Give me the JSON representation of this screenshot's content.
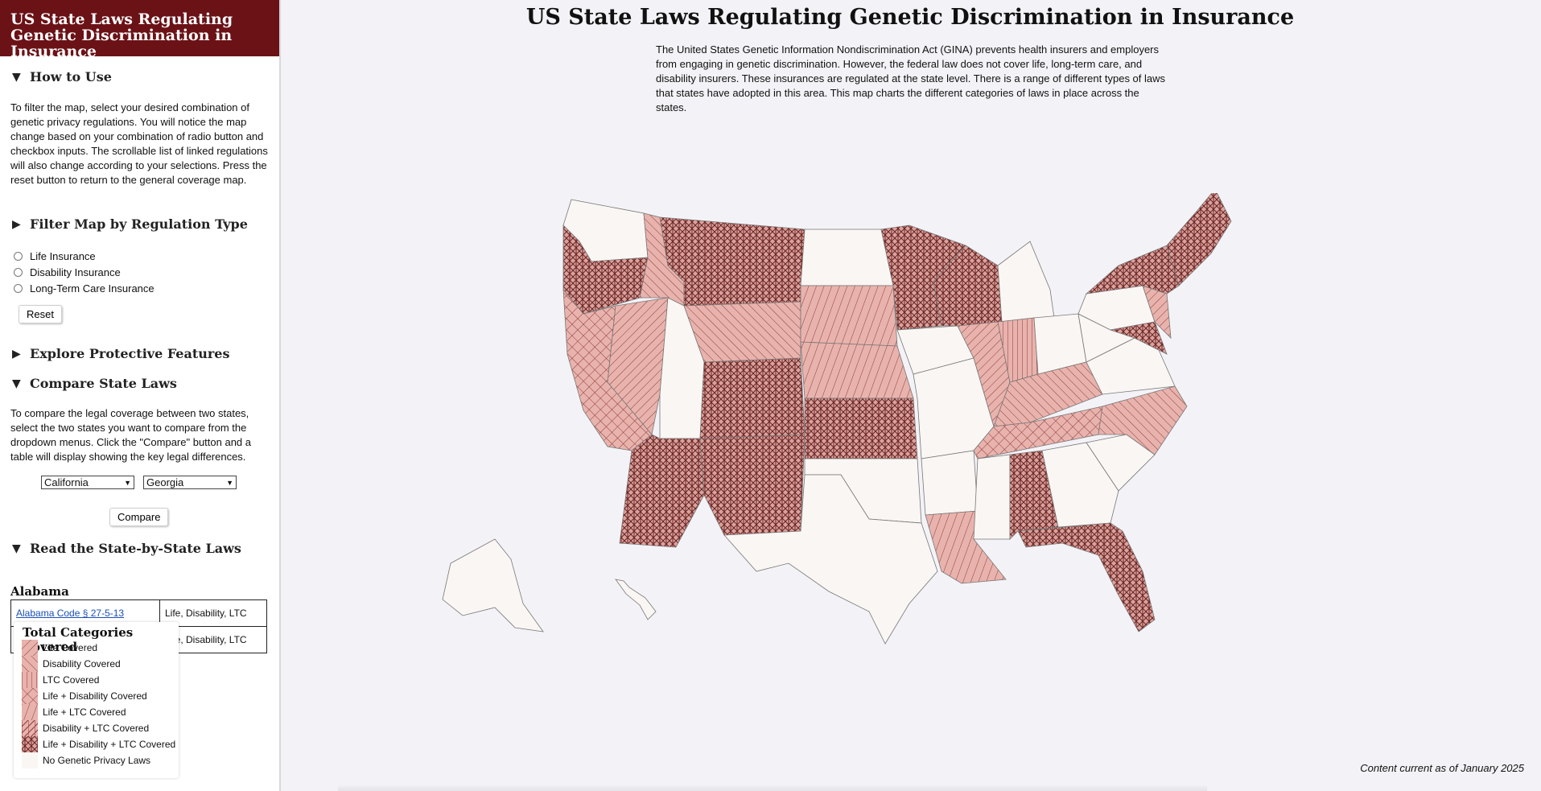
{
  "sidebar": {
    "title": "US State Laws Regulating Genetic Discrimination in Insurance",
    "how_to_use": {
      "heading": "How to Use",
      "text": "To filter the map, select your desired combination of genetic privacy regulations. You will notice the map change based on your combination of radio button and checkbox inputs. The scrollable list of linked regulations will also change according to your selections. Press the reset button to return to the general coverage map."
    },
    "filter": {
      "heading": "Filter Map by Regulation Type",
      "options": [
        "Life Insurance",
        "Disability Insurance",
        "Long-Term Care Insurance"
      ],
      "reset_label": "Reset"
    },
    "protective": {
      "heading": "Explore Protective Features"
    },
    "compare": {
      "heading": "Compare State Laws",
      "text": "To compare the legal coverage between two states, select the two states you want to compare from the dropdown menus. Click the \"Compare\" button and a table will display showing the key legal differences.",
      "state_a": "California",
      "state_b": "Georgia",
      "button_label": "Compare"
    },
    "laws": {
      "heading": "Read the State-by-State Laws",
      "state": "Alabama",
      "rows": [
        {
          "law": "Alabama Code § 27-5-13",
          "coverage": "Life, Disability, LTC"
        },
        {
          "law": "",
          "coverage": "Life, Disability, LTC"
        }
      ]
    }
  },
  "legend": {
    "title": "Total Categories Covered",
    "items": [
      {
        "label": "Life Covered",
        "pattern": "life"
      },
      {
        "label": "Disability Covered",
        "pattern": "dis"
      },
      {
        "label": "LTC Covered",
        "pattern": "ltc"
      },
      {
        "label": "Life + Disability Covered",
        "pattern": "life_dis"
      },
      {
        "label": "Life + LTC Covered",
        "pattern": "life_ltc"
      },
      {
        "label": "Disability + LTC Covered",
        "pattern": "dis_ltc"
      },
      {
        "label": "Life + Disability + LTC Covered",
        "pattern": "all"
      },
      {
        "label": "No Genetic Privacy Laws",
        "pattern": "none"
      }
    ]
  },
  "main": {
    "title": "US State Laws Regulating Genetic Discrimination in Insurance",
    "intro": "The United States Genetic Information Nondiscrimination Act (GINA) prevents health insurers and employers from engaging in genetic discrimination. However, the federal law does not cover life, long-term care, and disability insurers. These insurances are regulated at the state level. There is a range of different types of laws that states have adopted in this area. This map charts the different categories of laws in place across the states.",
    "footer": "Content current as of January 2025"
  },
  "colors": {
    "header_bg": "#6b1216",
    "covered_fill": "#e9b3ad",
    "hatch_line": "#7a2a2a",
    "no_law_fill": "#faf6f3",
    "state_border": "#777777"
  }
}
